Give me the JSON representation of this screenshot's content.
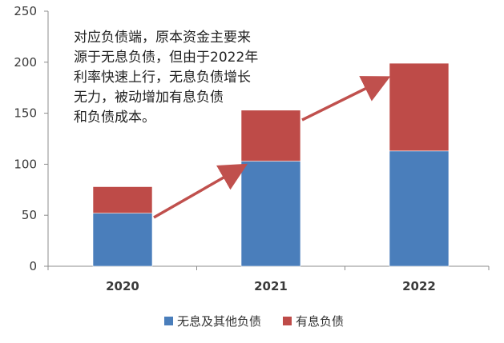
{
  "chart_data": {
    "type": "bar",
    "stacked": true,
    "categories": [
      "2020",
      "2021",
      "2022"
    ],
    "series": [
      {
        "name": "无息及其他负债",
        "values": [
          52,
          103,
          113
        ],
        "color": "#4a7ebb"
      },
      {
        "name": "有息负债",
        "values": [
          26,
          50,
          86
        ],
        "color": "#be4b48"
      }
    ],
    "ylim": [
      0,
      250
    ],
    "yticks": [
      0,
      50,
      100,
      150,
      200,
      250
    ],
    "grid": false,
    "legend_position": "bottom",
    "arrow_color": "#c0504d",
    "annotation_lines": [
      "对应负债端，原本资金主要来",
      "源于无息负债，但由于2022年",
      "利率快速上行，无息负债增长",
      "无力，被动增加有息负债",
      "和负债成本。"
    ]
  }
}
